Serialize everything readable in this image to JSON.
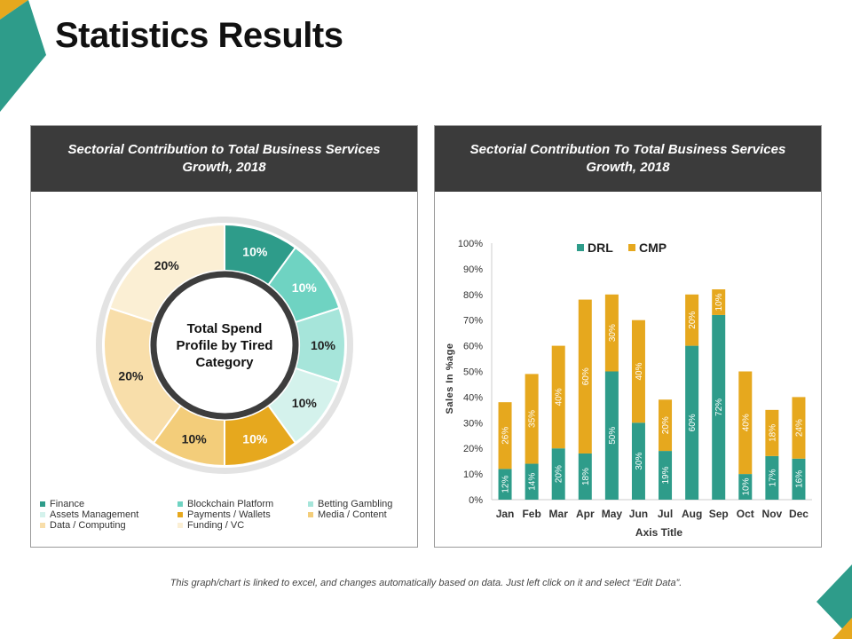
{
  "title": "Statistics Results",
  "footer": "This graph/chart is linked to excel, and changes automatically based on data. Just left click on it and select “Edit Data”.",
  "colors": {
    "teal": "#2e9c8a",
    "orange": "#e6a81e",
    "dark": "#3b3b3b"
  },
  "panel_left": {
    "header": "Sectorial Contribution to Total Business Services Growth, 2018"
  },
  "panel_right": {
    "header": "Sectorial Contribution To Total Business Services Growth, 2018"
  },
  "chart_data": [
    {
      "type": "pie",
      "center_label": [
        "Total Spend",
        "Profile by Tired",
        "Category"
      ],
      "slices": [
        {
          "name": "Finance",
          "value": 10,
          "label": "10%",
          "color": "#2e9c8a"
        },
        {
          "name": "Blockchain Platform",
          "value": 10,
          "label": "10%",
          "color": "#6fd3c2"
        },
        {
          "name": "Betting Gambling",
          "value": 10,
          "label": "10%",
          "color": "#a6e5da"
        },
        {
          "name": "Assets Management",
          "value": 10,
          "label": "10%",
          "color": "#d4f2ec"
        },
        {
          "name": "Payments / Wallets",
          "value": 10,
          "label": "10%",
          "color": "#e6a81e"
        },
        {
          "name": "Media / Content",
          "value": 10,
          "label": "10%",
          "color": "#f3cd7a"
        },
        {
          "name": "Data / Computing",
          "value": 20,
          "label": "20%",
          "color": "#f8deaa"
        },
        {
          "name": "Funding / VC",
          "value": 20,
          "label": "20%",
          "color": "#fbefd4"
        }
      ],
      "legend_position": "bottom"
    },
    {
      "type": "bar",
      "stacked": true,
      "categories": [
        "Jan",
        "Feb",
        "Mar",
        "Apr",
        "May",
        "Jun",
        "Jul",
        "Aug",
        "Sep",
        "Oct",
        "Nov",
        "Dec"
      ],
      "series": [
        {
          "name": "DRL",
          "color": "#2e9c8a",
          "values": [
            12,
            14,
            20,
            18,
            50,
            30,
            19,
            60,
            72,
            10,
            17,
            16
          ]
        },
        {
          "name": "CMP",
          "color": "#e6a81e",
          "values": [
            26,
            35,
            40,
            60,
            30,
            40,
            20,
            20,
            10,
            40,
            18,
            24
          ]
        }
      ],
      "xlabel": "Axis Title",
      "ylabel": "Sales In %age",
      "ylim": [
        0,
        100
      ],
      "yticks": [
        "0%",
        "10%",
        "20%",
        "30%",
        "40%",
        "50%",
        "60%",
        "70%",
        "80%",
        "90%",
        "100%"
      ],
      "legend_position": "top"
    }
  ]
}
